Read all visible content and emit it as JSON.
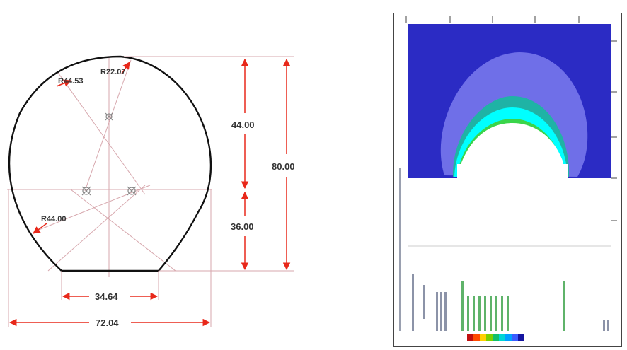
{
  "tunnel_section": {
    "radius_labels": {
      "crown": "R22.07",
      "upper": "R44.53",
      "lower": "R44.00"
    },
    "dimensions": {
      "upper_height": "44.00",
      "lower_height": "36.00",
      "total_height": "80.00",
      "base_width": "34.64",
      "total_width": "72.04"
    },
    "colors": {
      "outline": "#111111",
      "dimension": "#e8281a",
      "construction": "#d7a7ad"
    }
  },
  "fe_plot": {
    "colors": {
      "background": "#2b2bc4",
      "halo": "#6f6fe8",
      "bands": [
        "#1fb3a5",
        "#00ffff",
        "#3ad54a",
        "#c9e000",
        "#ff9a00",
        "#c81818"
      ]
    },
    "legend_colors": [
      "#c01010",
      "#ff4b00",
      "#ffd000",
      "#7cd000",
      "#11c06a",
      "#00d5d5",
      "#00a0ff",
      "#3b5cff",
      "#1515a0"
    ]
  }
}
